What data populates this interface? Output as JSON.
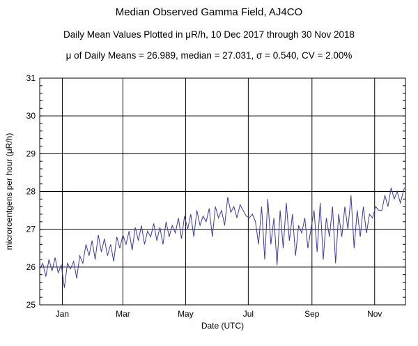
{
  "chart_data": {
    "type": "line",
    "title": "Median Observed Gamma Field, AJ4CO",
    "subtitle": "Daily Mean Values Plotted in μR/h, 10 Dec 2017 through 30 Nov 2018",
    "stats_line": "μ of Daily Means = 26.989,   median = 27.031,   σ = 0.540,   CV = 2.00%",
    "xlabel": "Date (UTC)",
    "ylabel": "microroentgens per hour (μR/h)",
    "ylim": [
      25,
      31
    ],
    "yticks": [
      "25",
      "26",
      "27",
      "28",
      "29",
      "30",
      "31"
    ],
    "xlim": [
      "2017-12-10",
      "2018-11-30"
    ],
    "xticks": [
      {
        "label": "Jan",
        "date": "2018-01-01"
      },
      {
        "label": "Mar",
        "date": "2018-03-01"
      },
      {
        "label": "May",
        "date": "2018-05-01"
      },
      {
        "label": "Jul",
        "date": "2018-07-01"
      },
      {
        "label": "Sep",
        "date": "2018-09-01"
      },
      {
        "label": "Nov",
        "date": "2018-11-01"
      }
    ],
    "grid": true,
    "series": [
      {
        "color": "#3a3aa0",
        "x": [
          "2017-12-10",
          "2017-12-13",
          "2017-12-16",
          "2017-12-19",
          "2017-12-22",
          "2017-12-25",
          "2017-12-28",
          "2017-12-31",
          "2018-01-03",
          "2018-01-06",
          "2018-01-09",
          "2018-01-12",
          "2018-01-15",
          "2018-01-18",
          "2018-01-21",
          "2018-01-24",
          "2018-01-27",
          "2018-01-30",
          "2018-02-02",
          "2018-02-05",
          "2018-02-08",
          "2018-02-11",
          "2018-02-14",
          "2018-02-17",
          "2018-02-20",
          "2018-02-23",
          "2018-02-26",
          "2018-03-01",
          "2018-03-04",
          "2018-03-07",
          "2018-03-10",
          "2018-03-13",
          "2018-03-16",
          "2018-03-19",
          "2018-03-22",
          "2018-03-25",
          "2018-03-28",
          "2018-03-31",
          "2018-04-03",
          "2018-04-06",
          "2018-04-09",
          "2018-04-12",
          "2018-04-15",
          "2018-04-18",
          "2018-04-21",
          "2018-04-24",
          "2018-04-27",
          "2018-04-30",
          "2018-05-03",
          "2018-05-06",
          "2018-05-09",
          "2018-05-12",
          "2018-05-15",
          "2018-05-18",
          "2018-05-21",
          "2018-05-24",
          "2018-05-27",
          "2018-05-30",
          "2018-06-02",
          "2018-06-05",
          "2018-06-08",
          "2018-06-11",
          "2018-06-14",
          "2018-06-17",
          "2018-06-20",
          "2018-06-23",
          "2018-06-26",
          "2018-06-29",
          "2018-07-02",
          "2018-07-05",
          "2018-07-08",
          "2018-07-11",
          "2018-07-14",
          "2018-07-17",
          "2018-07-20",
          "2018-07-23",
          "2018-07-26",
          "2018-07-29",
          "2018-08-01",
          "2018-08-04",
          "2018-08-07",
          "2018-08-10",
          "2018-08-13",
          "2018-08-16",
          "2018-08-19",
          "2018-08-22",
          "2018-08-25",
          "2018-08-28",
          "2018-08-31",
          "2018-09-03",
          "2018-09-06",
          "2018-09-09",
          "2018-09-12",
          "2018-09-15",
          "2018-09-18",
          "2018-09-21",
          "2018-09-24",
          "2018-09-27",
          "2018-09-30",
          "2018-10-03",
          "2018-10-06",
          "2018-10-09",
          "2018-10-12",
          "2018-10-15",
          "2018-10-18",
          "2018-10-21",
          "2018-10-24",
          "2018-10-27",
          "2018-10-30",
          "2018-11-02",
          "2018-11-05",
          "2018-11-08",
          "2018-11-11",
          "2018-11-14",
          "2018-11-17",
          "2018-11-20",
          "2018-11-23",
          "2018-11-26",
          "2018-11-30"
        ],
        "values": [
          25.95,
          26.1,
          25.75,
          26.2,
          25.9,
          26.25,
          25.85,
          26.05,
          25.45,
          26.1,
          25.95,
          26.15,
          25.7,
          26.3,
          26.1,
          26.6,
          26.3,
          26.7,
          26.2,
          26.85,
          26.4,
          26.75,
          26.3,
          26.6,
          26.15,
          26.8,
          26.5,
          26.85,
          26.6,
          26.95,
          26.45,
          27.05,
          26.7,
          27.1,
          26.6,
          26.95,
          26.8,
          27.15,
          26.7,
          27.05,
          26.6,
          27.2,
          26.8,
          27.1,
          26.9,
          27.3,
          26.75,
          27.35,
          27.0,
          27.4,
          26.8,
          27.5,
          27.1,
          27.35,
          27.2,
          27.55,
          26.8,
          27.6,
          27.3,
          27.5,
          27.1,
          27.85,
          27.45,
          27.6,
          27.3,
          27.65,
          27.5,
          27.35,
          27.3,
          27.4,
          27.2,
          26.6,
          27.6,
          26.2,
          27.8,
          26.6,
          27.3,
          26.05,
          27.5,
          26.5,
          27.7,
          26.7,
          27.4,
          26.3,
          27.1,
          26.9,
          27.3,
          26.5,
          27.0,
          27.5,
          26.4,
          27.7,
          26.2,
          27.3,
          26.8,
          27.6,
          26.1,
          27.4,
          26.8,
          27.6,
          27.0,
          27.9,
          26.5,
          27.5,
          26.8,
          27.6,
          26.9,
          27.4,
          27.3,
          27.6,
          27.5,
          27.5,
          27.9,
          27.6,
          28.1,
          27.8,
          28.0,
          27.7,
          28.1
        ]
      }
    ]
  }
}
